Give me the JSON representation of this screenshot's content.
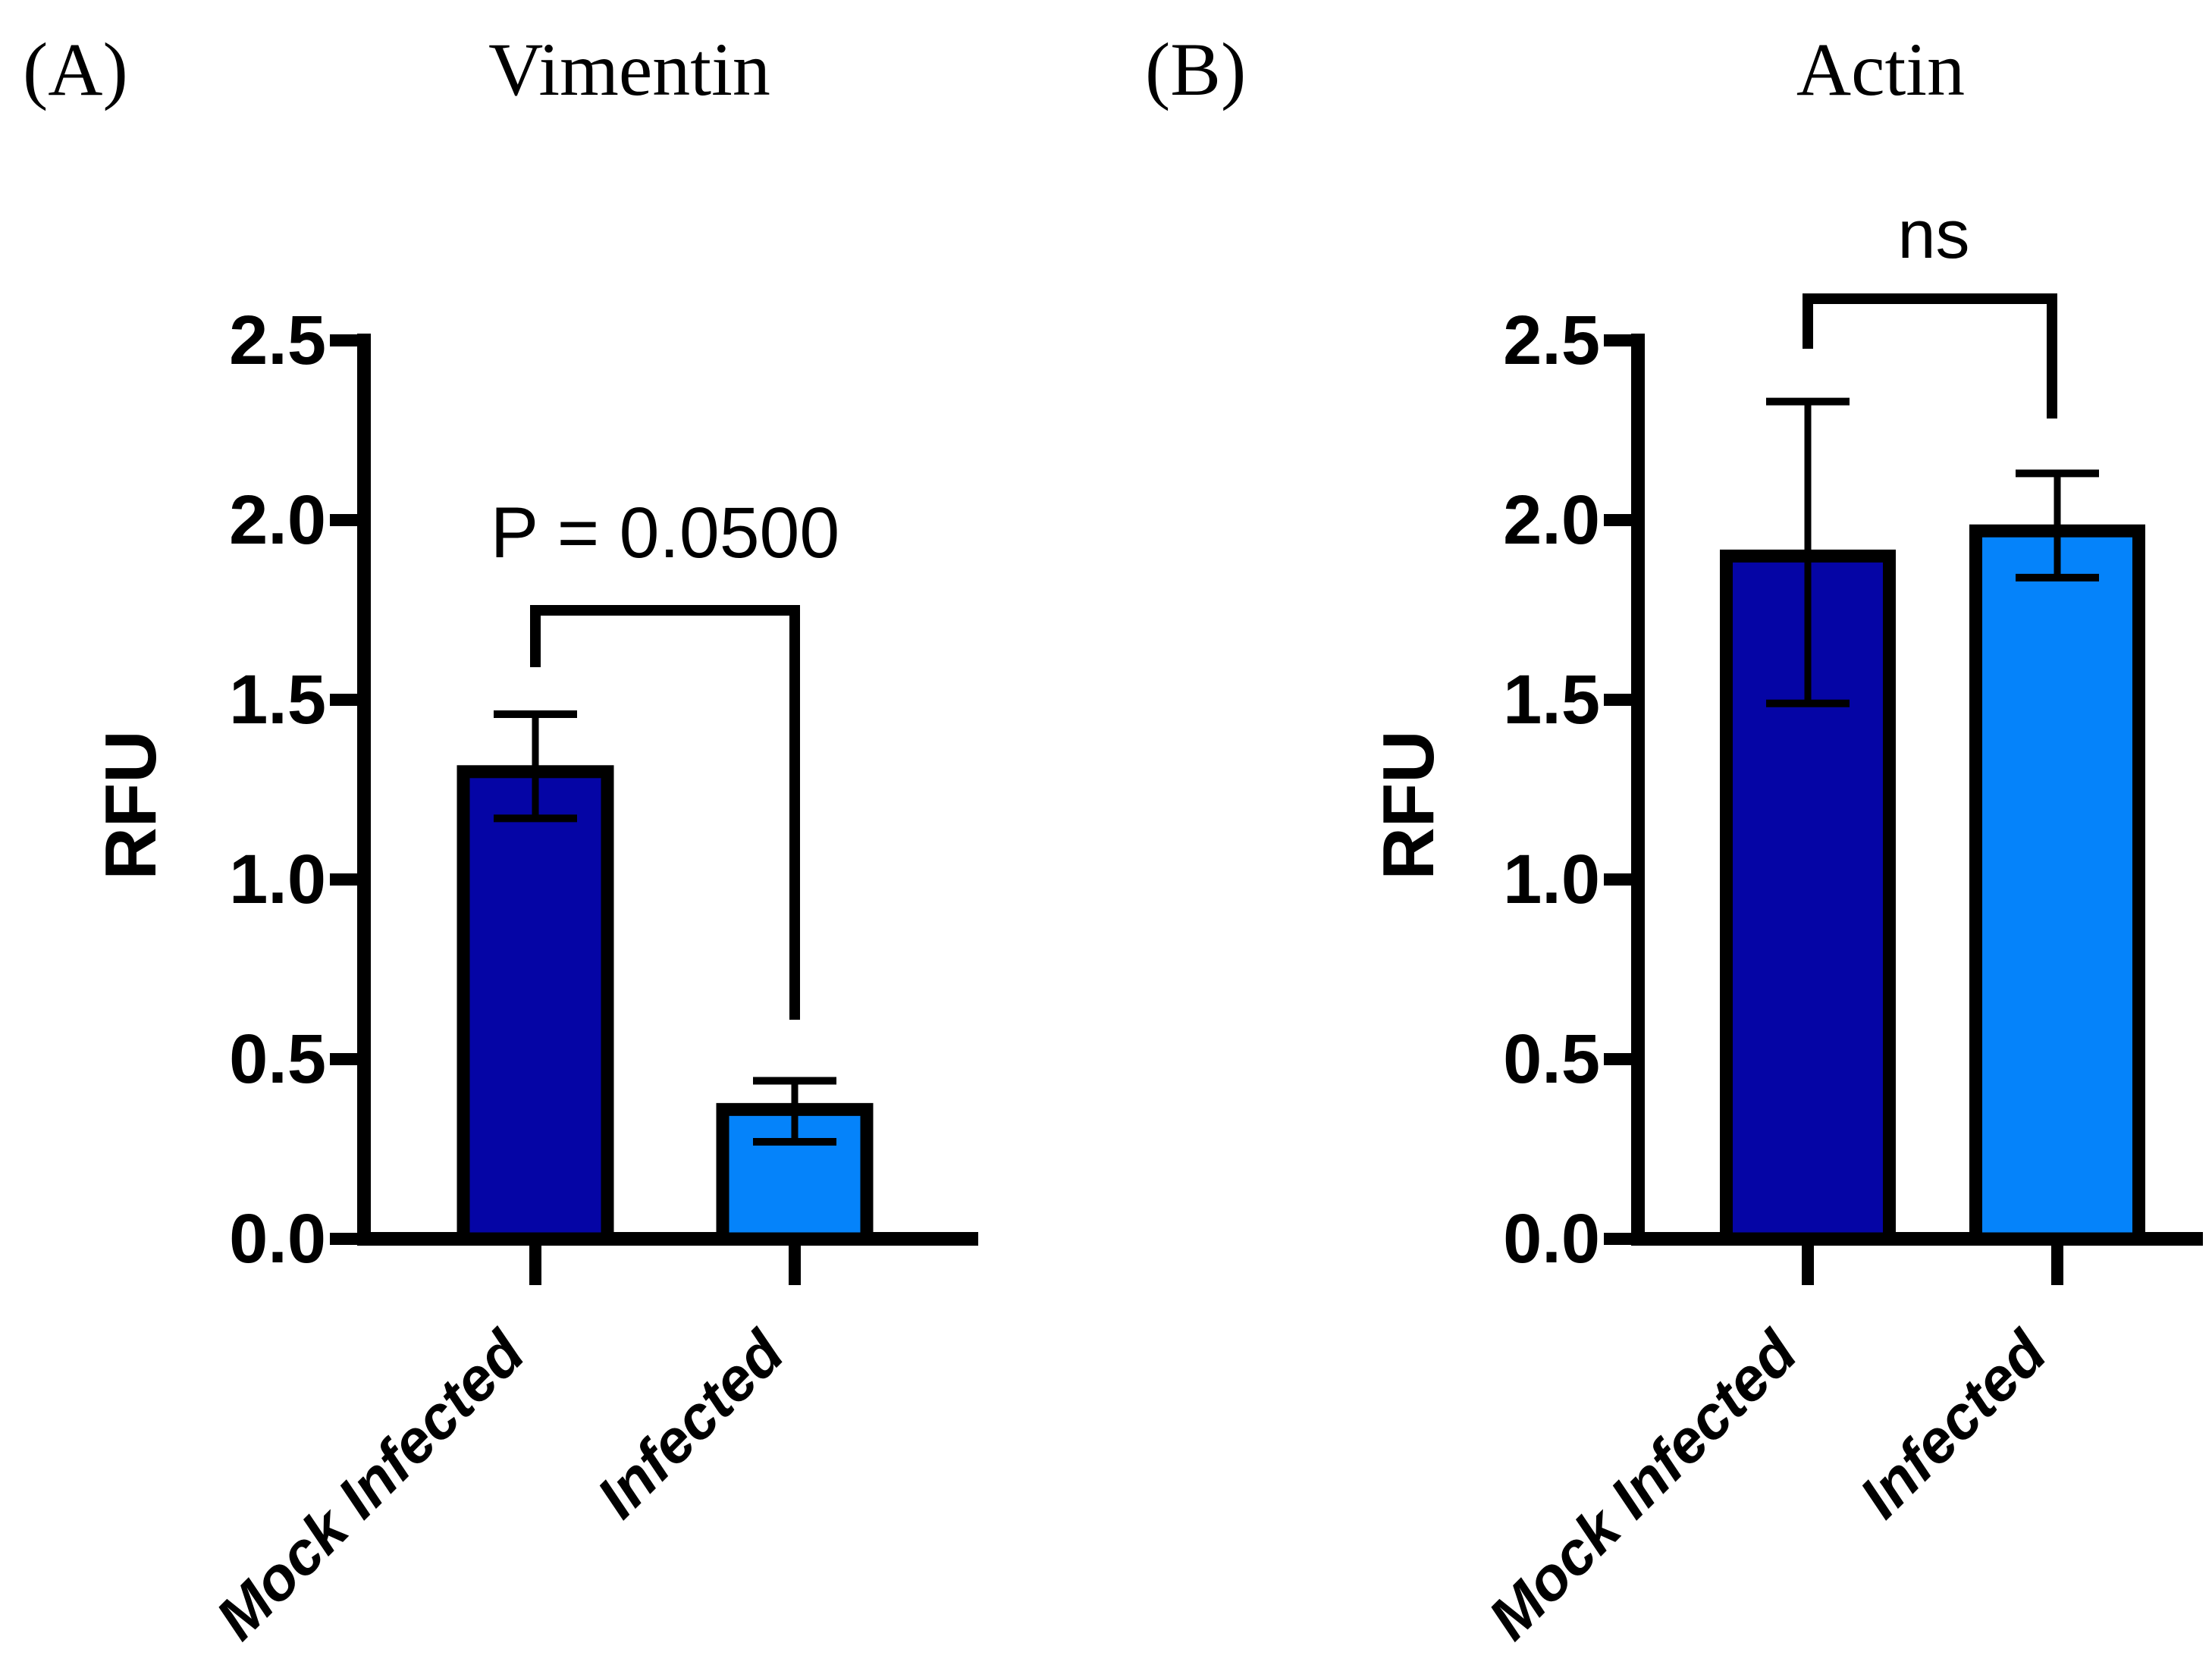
{
  "figure": {
    "background_color": "#FFFFFF",
    "axis_color": "#000000",
    "bar_outline_color": "#000000",
    "error_bar_color": "#000000"
  },
  "chart_data": [
    {
      "type": "bar",
      "panel_label": "(A)",
      "title": "Vimentin",
      "ylabel": "RFU",
      "ylim": [
        0.0,
        2.5
      ],
      "ytick_values": [
        0.0,
        0.5,
        1.0,
        1.5,
        2.0,
        2.5
      ],
      "ytick_labels": [
        "0.0",
        "0.5",
        "1.0",
        "1.5",
        "2.0",
        "2.5"
      ],
      "grid": "off",
      "legend": "none",
      "categories": [
        "Mock Infected",
        "Infected"
      ],
      "values": [
        1.3,
        0.36
      ],
      "error_low": [
        1.17,
        0.27
      ],
      "error_high": [
        1.46,
        0.44
      ],
      "bar_colors": [
        "#0505A5",
        "#0583FA"
      ],
      "annotation": {
        "label": "P = 0.0500",
        "between": [
          "Mock Infected",
          "Infected"
        ]
      }
    },
    {
      "type": "bar",
      "panel_label": "(B)",
      "title": "Actin",
      "ylabel": "RFU",
      "ylim": [
        0.0,
        2.5
      ],
      "ytick_values": [
        0.0,
        0.5,
        1.0,
        1.5,
        2.0,
        2.5
      ],
      "ytick_labels": [
        "0.0",
        "0.5",
        "1.0",
        "1.5",
        "2.0",
        "2.5"
      ],
      "grid": "off",
      "legend": "none",
      "categories": [
        "Mock Infected",
        "Infected"
      ],
      "values": [
        1.9,
        1.97
      ],
      "error_low": [
        1.49,
        1.84
      ],
      "error_high": [
        2.33,
        2.13
      ],
      "bar_colors": [
        "#0505A5",
        "#0583FA"
      ],
      "annotation": {
        "label": "ns",
        "between": [
          "Mock Infected",
          "Infected"
        ]
      }
    }
  ]
}
